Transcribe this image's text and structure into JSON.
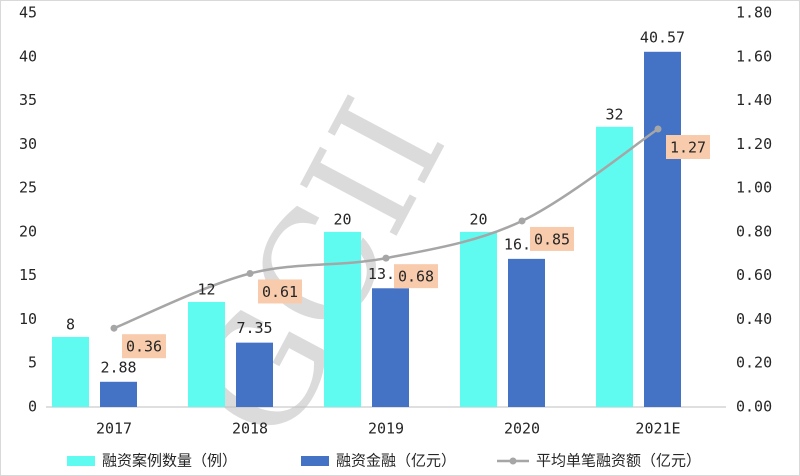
{
  "chart_data": {
    "type": "bar",
    "categories": [
      "2017",
      "2018",
      "2019",
      "2020",
      "2021E"
    ],
    "series": [
      {
        "name": "融资案例数量（例）",
        "kind": "bar",
        "axis": "left",
        "color": "#5ffbf1",
        "values": [
          8,
          12,
          20,
          20,
          32
        ]
      },
      {
        "name": "融资金融（亿元）",
        "kind": "bar",
        "axis": "left",
        "color": "#4472c4",
        "values": [
          2.88,
          7.35,
          13.56,
          16.92,
          40.57
        ]
      },
      {
        "name": "平均单笔融资额（亿元）",
        "kind": "line",
        "axis": "right",
        "color": "#a6a6a6",
        "values": [
          0.36,
          0.61,
          0.68,
          0.85,
          1.27
        ]
      }
    ],
    "data_labels": {
      "counts": [
        "8",
        "12",
        "20",
        "20",
        "32"
      ],
      "amounts": [
        "2.88",
        "7.35",
        "13.56",
        "16.92",
        "40.57"
      ],
      "averages": [
        "0.36",
        "0.61",
        "0.68",
        "0.85",
        "1.27"
      ]
    },
    "y_left": {
      "min": 0,
      "max": 45,
      "step": 5,
      "ticks": [
        "0",
        "5",
        "10",
        "15",
        "20",
        "25",
        "30",
        "35",
        "40",
        "45"
      ]
    },
    "y_right": {
      "min": 0,
      "max": 1.8,
      "step": 0.2,
      "ticks": [
        "0.00",
        "0.20",
        "0.40",
        "0.60",
        "0.80",
        "1.00",
        "1.20",
        "1.40",
        "1.60",
        "1.80"
      ]
    },
    "average_label_bg": "#f8cbad",
    "grid": false,
    "legend_position": "bottom",
    "watermark": "GCII"
  }
}
